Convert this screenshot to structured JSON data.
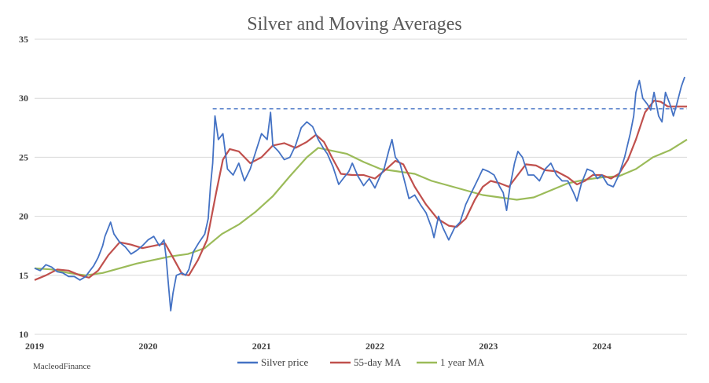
{
  "chart_data": {
    "type": "line",
    "title": "Silver and Moving Averages",
    "xlabel": "",
    "ylabel": "",
    "ylim": [
      10,
      35
    ],
    "yticks": [
      10,
      15,
      20,
      25,
      30,
      35
    ],
    "xlim": [
      2019.0,
      2024.75
    ],
    "xticks": [
      2019,
      2020,
      2021,
      2022,
      2023,
      2024
    ],
    "xtick_labels": [
      "2019",
      "2020",
      "2021",
      "2022",
      "2023",
      "2024"
    ],
    "grid": "horizontal",
    "legend_position": "bottom",
    "reference_line": {
      "value": 29.1,
      "from_x": 2020.57,
      "style": "dashed",
      "color": "#4472C4"
    },
    "series": [
      {
        "name": "Silver price",
        "color": "#4472C4",
        "points": [
          [
            2019.0,
            15.6
          ],
          [
            2019.05,
            15.4
          ],
          [
            2019.1,
            15.9
          ],
          [
            2019.15,
            15.7
          ],
          [
            2019.2,
            15.3
          ],
          [
            2019.25,
            15.2
          ],
          [
            2019.3,
            14.9
          ],
          [
            2019.35,
            14.9
          ],
          [
            2019.4,
            14.6
          ],
          [
            2019.45,
            14.9
          ],
          [
            2019.48,
            15.3
          ],
          [
            2019.52,
            15.8
          ],
          [
            2019.56,
            16.5
          ],
          [
            2019.6,
            17.5
          ],
          [
            2019.62,
            18.3
          ],
          [
            2019.67,
            19.5
          ],
          [
            2019.7,
            18.5
          ],
          [
            2019.75,
            17.8
          ],
          [
            2019.8,
            17.4
          ],
          [
            2019.85,
            16.8
          ],
          [
            2019.9,
            17.1
          ],
          [
            2019.95,
            17.5
          ],
          [
            2020.0,
            18.0
          ],
          [
            2020.05,
            18.3
          ],
          [
            2020.1,
            17.5
          ],
          [
            2020.14,
            18.0
          ],
          [
            2020.16,
            16.5
          ],
          [
            2020.18,
            14.2
          ],
          [
            2020.2,
            12.0
          ],
          [
            2020.22,
            13.5
          ],
          [
            2020.25,
            15.0
          ],
          [
            2020.3,
            15.2
          ],
          [
            2020.33,
            15.0
          ],
          [
            2020.36,
            15.5
          ],
          [
            2020.4,
            17.0
          ],
          [
            2020.45,
            17.8
          ],
          [
            2020.5,
            18.5
          ],
          [
            2020.53,
            19.8
          ],
          [
            2020.55,
            22.5
          ],
          [
            2020.57,
            24.5
          ],
          [
            2020.59,
            28.5
          ],
          [
            2020.62,
            26.5
          ],
          [
            2020.66,
            27.0
          ],
          [
            2020.7,
            24.0
          ],
          [
            2020.75,
            23.5
          ],
          [
            2020.8,
            24.5
          ],
          [
            2020.85,
            23.0
          ],
          [
            2020.9,
            24.0
          ],
          [
            2020.95,
            25.5
          ],
          [
            2021.0,
            27.0
          ],
          [
            2021.05,
            26.5
          ],
          [
            2021.08,
            28.8
          ],
          [
            2021.1,
            26.0
          ],
          [
            2021.15,
            25.5
          ],
          [
            2021.2,
            24.8
          ],
          [
            2021.25,
            25.0
          ],
          [
            2021.3,
            26.0
          ],
          [
            2021.35,
            27.5
          ],
          [
            2021.4,
            28.0
          ],
          [
            2021.45,
            27.6
          ],
          [
            2021.5,
            26.5
          ],
          [
            2021.55,
            25.7
          ],
          [
            2021.58,
            25.3
          ],
          [
            2021.63,
            24.2
          ],
          [
            2021.68,
            22.7
          ],
          [
            2021.72,
            23.2
          ],
          [
            2021.77,
            23.8
          ],
          [
            2021.8,
            24.5
          ],
          [
            2021.85,
            23.4
          ],
          [
            2021.9,
            22.6
          ],
          [
            2021.95,
            23.2
          ],
          [
            2022.0,
            22.4
          ],
          [
            2022.05,
            23.5
          ],
          [
            2022.08,
            24.0
          ],
          [
            2022.12,
            25.5
          ],
          [
            2022.15,
            26.5
          ],
          [
            2022.18,
            25.0
          ],
          [
            2022.22,
            24.5
          ],
          [
            2022.26,
            23.0
          ],
          [
            2022.3,
            21.5
          ],
          [
            2022.35,
            21.8
          ],
          [
            2022.4,
            21.0
          ],
          [
            2022.45,
            20.3
          ],
          [
            2022.5,
            19.0
          ],
          [
            2022.52,
            18.2
          ],
          [
            2022.56,
            20.0
          ],
          [
            2022.6,
            19.0
          ],
          [
            2022.65,
            18.0
          ],
          [
            2022.7,
            19.0
          ],
          [
            2022.75,
            19.5
          ],
          [
            2022.8,
            21.0
          ],
          [
            2022.85,
            22.0
          ],
          [
            2022.9,
            23.0
          ],
          [
            2022.95,
            24.0
          ],
          [
            2023.0,
            23.8
          ],
          [
            2023.05,
            23.5
          ],
          [
            2023.1,
            22.5
          ],
          [
            2023.13,
            22.0
          ],
          [
            2023.16,
            20.5
          ],
          [
            2023.19,
            22.5
          ],
          [
            2023.23,
            24.5
          ],
          [
            2023.26,
            25.5
          ],
          [
            2023.3,
            25.0
          ],
          [
            2023.35,
            23.5
          ],
          [
            2023.4,
            23.5
          ],
          [
            2023.45,
            23.0
          ],
          [
            2023.5,
            24.0
          ],
          [
            2023.55,
            24.5
          ],
          [
            2023.6,
            23.5
          ],
          [
            2023.65,
            23.0
          ],
          [
            2023.7,
            23.0
          ],
          [
            2023.75,
            22.0
          ],
          [
            2023.78,
            21.3
          ],
          [
            2023.82,
            22.8
          ],
          [
            2023.87,
            24.0
          ],
          [
            2023.92,
            23.8
          ],
          [
            2023.96,
            23.2
          ],
          [
            2024.0,
            23.5
          ],
          [
            2024.05,
            22.7
          ],
          [
            2024.1,
            22.5
          ],
          [
            2024.15,
            23.5
          ],
          [
            2024.2,
            25.0
          ],
          [
            2024.25,
            27.0
          ],
          [
            2024.28,
            28.5
          ],
          [
            2024.3,
            30.5
          ],
          [
            2024.33,
            31.5
          ],
          [
            2024.36,
            30.0
          ],
          [
            2024.4,
            29.5
          ],
          [
            2024.43,
            29.0
          ],
          [
            2024.46,
            30.5
          ],
          [
            2024.5,
            28.5
          ],
          [
            2024.53,
            28.0
          ],
          [
            2024.56,
            30.5
          ],
          [
            2024.6,
            29.5
          ],
          [
            2024.63,
            28.5
          ],
          [
            2024.66,
            29.5
          ],
          [
            2024.7,
            31.0
          ],
          [
            2024.73,
            31.8
          ]
        ]
      },
      {
        "name": "55-day MA",
        "color": "#C0504D",
        "points": [
          [
            2019.0,
            14.6
          ],
          [
            2019.1,
            15.0
          ],
          [
            2019.2,
            15.5
          ],
          [
            2019.3,
            15.4
          ],
          [
            2019.4,
            15.0
          ],
          [
            2019.48,
            14.8
          ],
          [
            2019.56,
            15.4
          ],
          [
            2019.65,
            16.7
          ],
          [
            2019.75,
            17.8
          ],
          [
            2019.85,
            17.6
          ],
          [
            2019.95,
            17.3
          ],
          [
            2020.05,
            17.5
          ],
          [
            2020.15,
            17.7
          ],
          [
            2020.22,
            16.5
          ],
          [
            2020.3,
            15.1
          ],
          [
            2020.36,
            15.0
          ],
          [
            2020.44,
            16.3
          ],
          [
            2020.52,
            18.0
          ],
          [
            2020.6,
            22.0
          ],
          [
            2020.66,
            24.8
          ],
          [
            2020.72,
            25.7
          ],
          [
            2020.8,
            25.5
          ],
          [
            2020.9,
            24.5
          ],
          [
            2021.0,
            25.0
          ],
          [
            2021.1,
            26.0
          ],
          [
            2021.2,
            26.2
          ],
          [
            2021.3,
            25.8
          ],
          [
            2021.4,
            26.3
          ],
          [
            2021.48,
            26.9
          ],
          [
            2021.55,
            26.3
          ],
          [
            2021.62,
            25.0
          ],
          [
            2021.7,
            23.6
          ],
          [
            2021.8,
            23.5
          ],
          [
            2021.9,
            23.5
          ],
          [
            2022.0,
            23.2
          ],
          [
            2022.1,
            24.0
          ],
          [
            2022.18,
            24.7
          ],
          [
            2022.25,
            24.4
          ],
          [
            2022.35,
            22.5
          ],
          [
            2022.45,
            21.0
          ],
          [
            2022.55,
            19.8
          ],
          [
            2022.65,
            19.2
          ],
          [
            2022.72,
            19.1
          ],
          [
            2022.8,
            19.8
          ],
          [
            2022.88,
            21.4
          ],
          [
            2022.95,
            22.5
          ],
          [
            2023.02,
            23.0
          ],
          [
            2023.1,
            22.8
          ],
          [
            2023.18,
            22.5
          ],
          [
            2023.25,
            23.4
          ],
          [
            2023.33,
            24.4
          ],
          [
            2023.42,
            24.3
          ],
          [
            2023.5,
            23.9
          ],
          [
            2023.6,
            23.8
          ],
          [
            2023.7,
            23.3
          ],
          [
            2023.78,
            22.7
          ],
          [
            2023.85,
            23.0
          ],
          [
            2023.92,
            23.5
          ],
          [
            2024.0,
            23.5
          ],
          [
            2024.08,
            23.2
          ],
          [
            2024.15,
            23.6
          ],
          [
            2024.23,
            24.8
          ],
          [
            2024.3,
            26.5
          ],
          [
            2024.38,
            28.8
          ],
          [
            2024.46,
            29.8
          ],
          [
            2024.52,
            29.7
          ],
          [
            2024.58,
            29.3
          ],
          [
            2024.66,
            29.3
          ],
          [
            2024.75,
            29.3
          ]
        ]
      },
      {
        "name": "1 year MA",
        "color": "#9BBB59",
        "points": [
          [
            2019.0,
            15.6
          ],
          [
            2019.15,
            15.5
          ],
          [
            2019.3,
            15.2
          ],
          [
            2019.45,
            15.0
          ],
          [
            2019.6,
            15.2
          ],
          [
            2019.75,
            15.6
          ],
          [
            2019.9,
            16.0
          ],
          [
            2020.05,
            16.3
          ],
          [
            2020.2,
            16.6
          ],
          [
            2020.35,
            16.8
          ],
          [
            2020.5,
            17.3
          ],
          [
            2020.65,
            18.5
          ],
          [
            2020.8,
            19.3
          ],
          [
            2020.95,
            20.4
          ],
          [
            2021.1,
            21.7
          ],
          [
            2021.25,
            23.4
          ],
          [
            2021.4,
            25.0
          ],
          [
            2021.5,
            25.8
          ],
          [
            2021.6,
            25.6
          ],
          [
            2021.75,
            25.3
          ],
          [
            2021.9,
            24.6
          ],
          [
            2022.05,
            24.0
          ],
          [
            2022.2,
            23.8
          ],
          [
            2022.35,
            23.6
          ],
          [
            2022.5,
            23.0
          ],
          [
            2022.65,
            22.6
          ],
          [
            2022.8,
            22.2
          ],
          [
            2022.95,
            21.8
          ],
          [
            2023.1,
            21.6
          ],
          [
            2023.25,
            21.4
          ],
          [
            2023.4,
            21.6
          ],
          [
            2023.55,
            22.2
          ],
          [
            2023.7,
            22.8
          ],
          [
            2023.85,
            23.1
          ],
          [
            2024.0,
            23.3
          ],
          [
            2024.15,
            23.4
          ],
          [
            2024.3,
            24.0
          ],
          [
            2024.45,
            25.0
          ],
          [
            2024.6,
            25.6
          ],
          [
            2024.75,
            26.5
          ]
        ]
      }
    ],
    "source_label": "MacleodFinance"
  }
}
